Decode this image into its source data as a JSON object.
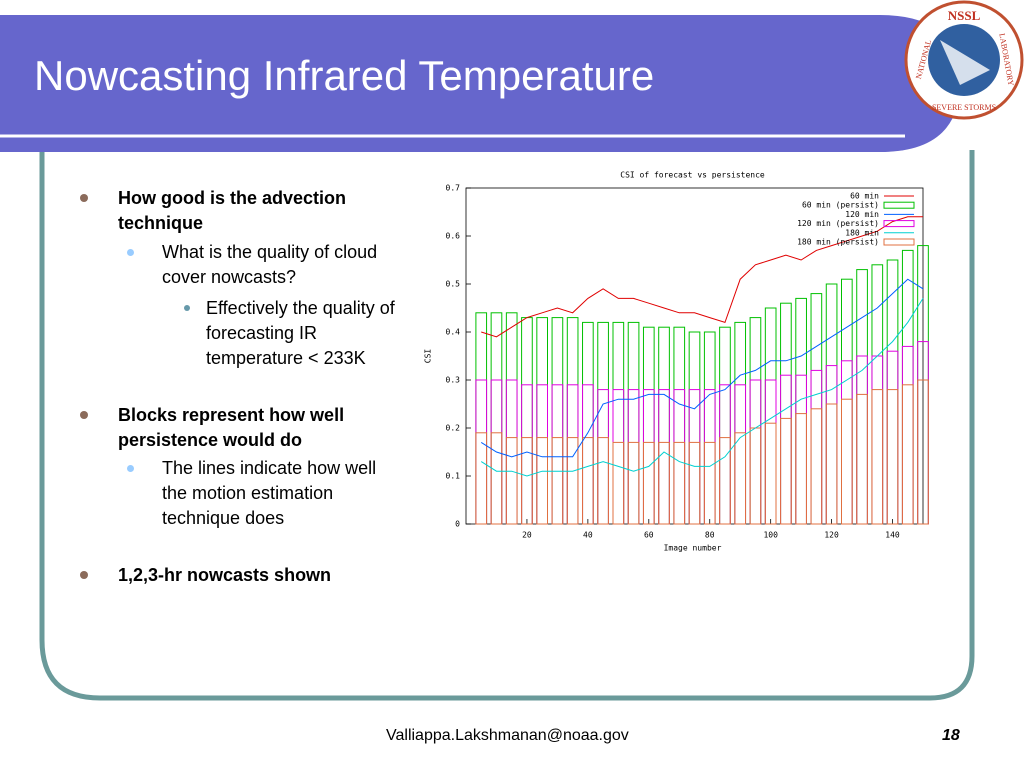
{
  "slide": {
    "title": "Nowcasting Infrared Temperature",
    "bullets": [
      {
        "level": 1,
        "text": "How good is the advection technique"
      },
      {
        "level": 2,
        "text": "What is the quality of cloud cover nowcasts?"
      },
      {
        "level": 3,
        "text": "Effectively the quality of forecasting IR temperature < 233K"
      },
      {
        "level": 1,
        "text": "Blocks represent how well persistence would do"
      },
      {
        "level": 2,
        "text": "The lines indicate how well the motion estimation technique does"
      },
      {
        "level": 1,
        "text": "1,2,3-hr nowcasts shown"
      }
    ],
    "footer": "Valliappa.Lakshmanan@noaa.gov",
    "page_number": "18",
    "logo": {
      "name": "NSSL",
      "top": "NATIONAL",
      "bottom": "SEVERE STORMS",
      "right": "LABORATORY"
    }
  },
  "chart_data": {
    "type": "line",
    "title": "CSI of forecast vs persistence",
    "x_label": "Image number",
    "y_label": "CSI",
    "x": [
      5,
      10,
      15,
      20,
      25,
      30,
      35,
      40,
      45,
      50,
      55,
      60,
      65,
      70,
      75,
      80,
      85,
      90,
      95,
      100,
      105,
      110,
      115,
      120,
      125,
      130,
      135,
      140,
      145,
      150
    ],
    "series": [
      {
        "name": "60 min",
        "color": "#e00000",
        "style": "line",
        "values": [
          0.4,
          0.39,
          0.41,
          0.43,
          0.44,
          0.45,
          0.44,
          0.47,
          0.49,
          0.47,
          0.47,
          0.46,
          0.45,
          0.44,
          0.44,
          0.43,
          0.42,
          0.51,
          0.54,
          0.55,
          0.56,
          0.55,
          0.57,
          0.58,
          0.59,
          0.6,
          0.61,
          0.63,
          0.64,
          0.64
        ]
      },
      {
        "name": "60 min (persist)",
        "color": "#00c000",
        "style": "bar",
        "values": [
          0.44,
          0.44,
          0.44,
          0.43,
          0.43,
          0.43,
          0.43,
          0.42,
          0.42,
          0.42,
          0.42,
          0.41,
          0.41,
          0.41,
          0.4,
          0.4,
          0.41,
          0.42,
          0.43,
          0.45,
          0.46,
          0.47,
          0.48,
          0.5,
          0.51,
          0.53,
          0.54,
          0.55,
          0.57,
          0.58
        ]
      },
      {
        "name": "120 min",
        "color": "#0060ff",
        "style": "line",
        "values": [
          0.17,
          0.15,
          0.14,
          0.15,
          0.14,
          0.14,
          0.14,
          0.19,
          0.25,
          0.26,
          0.26,
          0.27,
          0.27,
          0.25,
          0.24,
          0.27,
          0.28,
          0.31,
          0.32,
          0.34,
          0.34,
          0.35,
          0.37,
          0.39,
          0.41,
          0.43,
          0.45,
          0.48,
          0.51,
          0.49
        ]
      },
      {
        "name": "120 min (persist)",
        "color": "#e000e0",
        "style": "bar",
        "values": [
          0.3,
          0.3,
          0.3,
          0.29,
          0.29,
          0.29,
          0.29,
          0.29,
          0.28,
          0.28,
          0.28,
          0.28,
          0.28,
          0.28,
          0.28,
          0.28,
          0.29,
          0.29,
          0.3,
          0.3,
          0.31,
          0.31,
          0.32,
          0.33,
          0.34,
          0.35,
          0.35,
          0.36,
          0.37,
          0.38
        ]
      },
      {
        "name": "180 min",
        "color": "#00d0d0",
        "style": "line",
        "values": [
          0.13,
          0.11,
          0.11,
          0.1,
          0.11,
          0.11,
          0.11,
          0.12,
          0.13,
          0.12,
          0.11,
          0.12,
          0.15,
          0.13,
          0.12,
          0.12,
          0.14,
          0.18,
          0.2,
          0.22,
          0.24,
          0.26,
          0.27,
          0.28,
          0.3,
          0.32,
          0.35,
          0.38,
          0.42,
          0.47
        ]
      },
      {
        "name": "180 min (persist)",
        "color": "#e07040",
        "style": "bar",
        "values": [
          0.19,
          0.19,
          0.18,
          0.18,
          0.18,
          0.18,
          0.18,
          0.18,
          0.18,
          0.17,
          0.17,
          0.17,
          0.17,
          0.17,
          0.17,
          0.17,
          0.18,
          0.19,
          0.2,
          0.21,
          0.22,
          0.23,
          0.24,
          0.25,
          0.26,
          0.27,
          0.28,
          0.28,
          0.29,
          0.3
        ]
      }
    ],
    "xlim": [
      0,
      150
    ],
    "xticks": [
      20,
      40,
      60,
      80,
      100,
      120,
      140
    ],
    "ylim": [
      0,
      0.7
    ],
    "yticks": [
      0,
      0.1,
      0.2,
      0.3,
      0.4,
      0.5,
      0.6,
      0.7
    ],
    "legend": "top-right"
  }
}
